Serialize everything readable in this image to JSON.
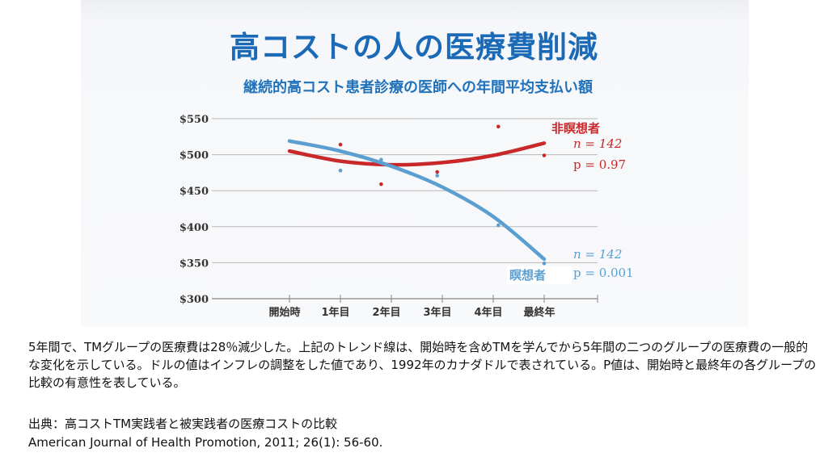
{
  "slide": {
    "title": "高コストの人の医療費削減",
    "caption": "5年間で、TMグループの医療費は28％減少した。上記のトレンド線は、開始時を含めTMを学んでから5年間の二つのグループの医療費の一般的な変化を示している。ドルの値はインフレの調整をした値であり、1992年のカナダドルで表されている。P値は、開始時と最終年の各グループの比較の有意性を表している。",
    "source_label": "出典：高コストTM実践者と被実践者の医療コストの比較",
    "source_citation": "American Journal of Health Promotion, 2011; 26(1): 56-60."
  },
  "chart_data": {
    "type": "scatter",
    "title": "継続的高コスト患者診療の医師への年間平均支払い額",
    "categories": [
      "開始時",
      "1年目",
      "2年目",
      "3年目",
      "4年目",
      "最終年"
    ],
    "yticks": [
      "$300",
      "$350",
      "$400",
      "$450",
      "$500",
      "$550"
    ],
    "ylim": [
      300,
      550
    ],
    "grid": true,
    "series": [
      {
        "name": "非瞑想者",
        "color": "#c8282a",
        "n_label": "n = 142",
        "p_label": "p = 0.97",
        "points": [
          [
            1,
            514
          ],
          [
            1.8,
            459
          ],
          [
            2.9,
            476
          ],
          [
            4.1,
            539
          ],
          [
            5,
            499
          ]
        ],
        "trend": [
          [
            0,
            505
          ],
          [
            1,
            491
          ],
          [
            2,
            486
          ],
          [
            3,
            489
          ],
          [
            4,
            499
          ],
          [
            5,
            516
          ]
        ]
      },
      {
        "name": "瞑想者",
        "color": "#5b9fd1",
        "n_label": "n = 142",
        "p_label": "p = 0.001",
        "points": [
          [
            1,
            478
          ],
          [
            1.8,
            493
          ],
          [
            2.9,
            471
          ],
          [
            4.1,
            402
          ],
          [
            5,
            349
          ]
        ],
        "trend": [
          [
            0,
            519
          ],
          [
            1,
            505
          ],
          [
            2,
            484
          ],
          [
            3,
            455
          ],
          [
            4,
            414
          ],
          [
            5,
            355
          ]
        ]
      }
    ]
  }
}
